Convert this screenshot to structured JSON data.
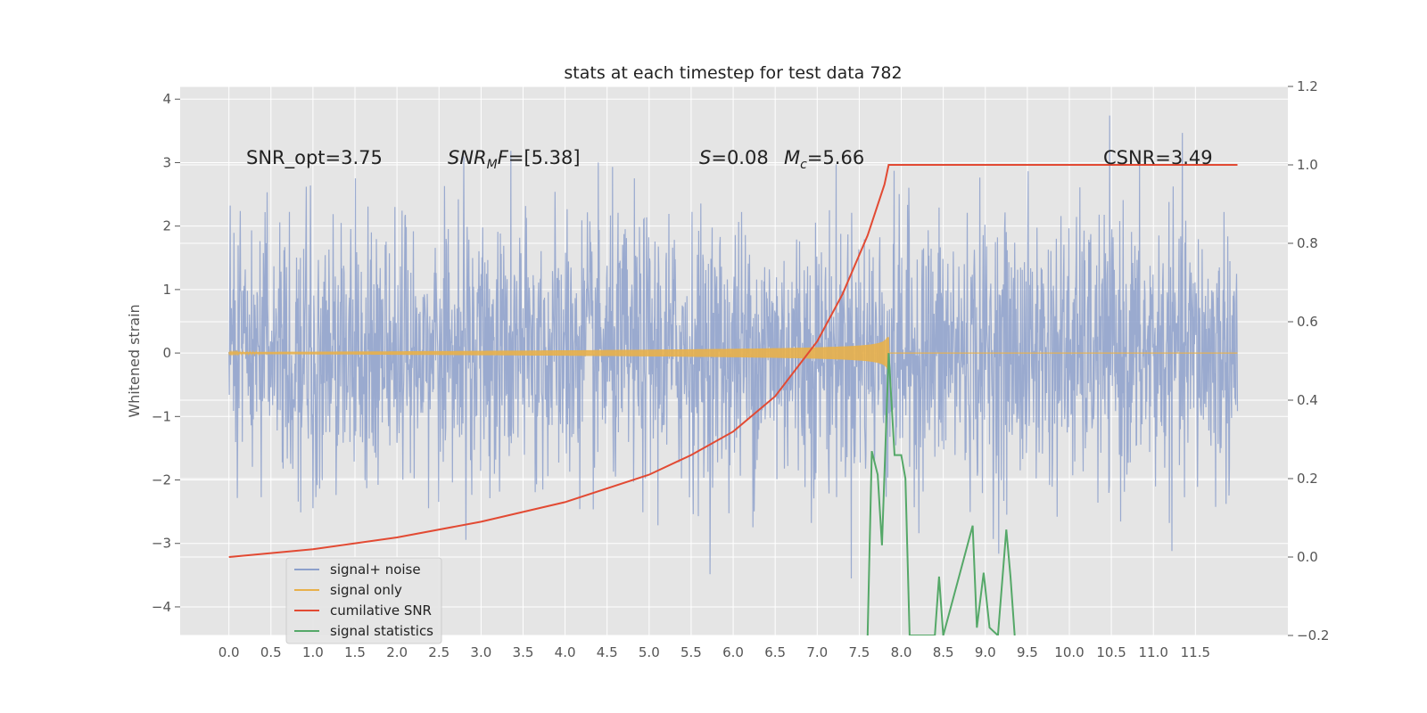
{
  "chart_data": {
    "type": "line",
    "title": "stats at each timestep for test data 782",
    "ylabel": "Whitened strain",
    "ylabel_right": "",
    "xlim": [
      -0.58,
      12.6
    ],
    "ylim": [
      -4.45,
      4.2
    ],
    "ylim_right": [
      -0.2,
      1.2
    ],
    "x_ticks": [
      "0.0",
      "0.5",
      "1.0",
      "1.5",
      "2.0",
      "2.5",
      "3.0",
      "3.5",
      "4.0",
      "4.5",
      "5.0",
      "5.5",
      "6.0",
      "6.5",
      "7.0",
      "7.5",
      "8.0",
      "8.5",
      "9.0",
      "9.5",
      "10.0",
      "10.5",
      "11.0",
      "11.5"
    ],
    "y_ticks": [
      "4",
      "3",
      "2",
      "1",
      "0",
      "−1",
      "−2",
      "−3",
      "−4"
    ],
    "y_ticks_right": [
      "1.2",
      "1.0",
      "0.8",
      "0.6",
      "0.4",
      "0.2",
      "0.0",
      "−0.2"
    ],
    "grid": true,
    "legend_position": "bottom-left",
    "series": [
      {
        "name": "signal+ noise",
        "color": "#8da0cb",
        "axis": "left",
        "x_range": [
          0.0,
          12.0
        ],
        "amplitude": 1.4,
        "max": 3.8,
        "min": -4.1
      },
      {
        "name": "signal only",
        "color": "#e8b04a",
        "axis": "left",
        "chirp_end": 7.85,
        "envelope_max": 0.25
      },
      {
        "name": "cumilative SNR",
        "color": "#e24a33",
        "axis": "right",
        "x": [
          0.0,
          1.0,
          2.0,
          3.0,
          4.0,
          5.0,
          5.5,
          6.0,
          6.5,
          7.0,
          7.3,
          7.6,
          7.8,
          7.85,
          12.0
        ],
        "y": [
          0.0,
          0.02,
          0.05,
          0.09,
          0.14,
          0.21,
          0.26,
          0.32,
          0.41,
          0.55,
          0.67,
          0.82,
          0.95,
          1.0,
          1.0
        ]
      },
      {
        "name": "signal statistics",
        "color": "#55a868",
        "axis": "right",
        "x": [
          7.6,
          7.65,
          7.72,
          7.77,
          7.85,
          7.92,
          8.0,
          8.05,
          8.1,
          8.4,
          8.45,
          8.5,
          8.85,
          8.9,
          8.98,
          9.05,
          9.15,
          9.25,
          9.3,
          9.35
        ],
        "y": [
          -0.2,
          0.27,
          0.21,
          0.03,
          0.52,
          0.26,
          0.26,
          0.2,
          -0.2,
          -0.2,
          -0.05,
          -0.2,
          0.08,
          -0.18,
          -0.04,
          -0.18,
          -0.2,
          0.07,
          -0.05,
          -0.2
        ]
      }
    ],
    "annotations": [
      {
        "id": "snr_opt",
        "text": "SNR_opt=3.75"
      },
      {
        "id": "snr_mf",
        "var": "SNR",
        "sub": "M",
        "var2": "F",
        "rest": "=[5.38]"
      },
      {
        "id": "s",
        "var": "S",
        "rest": "=0.08"
      },
      {
        "id": "mc",
        "var": "M",
        "sub": "c",
        "rest": "=5.66"
      },
      {
        "id": "csnr",
        "text": "CSNR=3.49"
      }
    ]
  }
}
